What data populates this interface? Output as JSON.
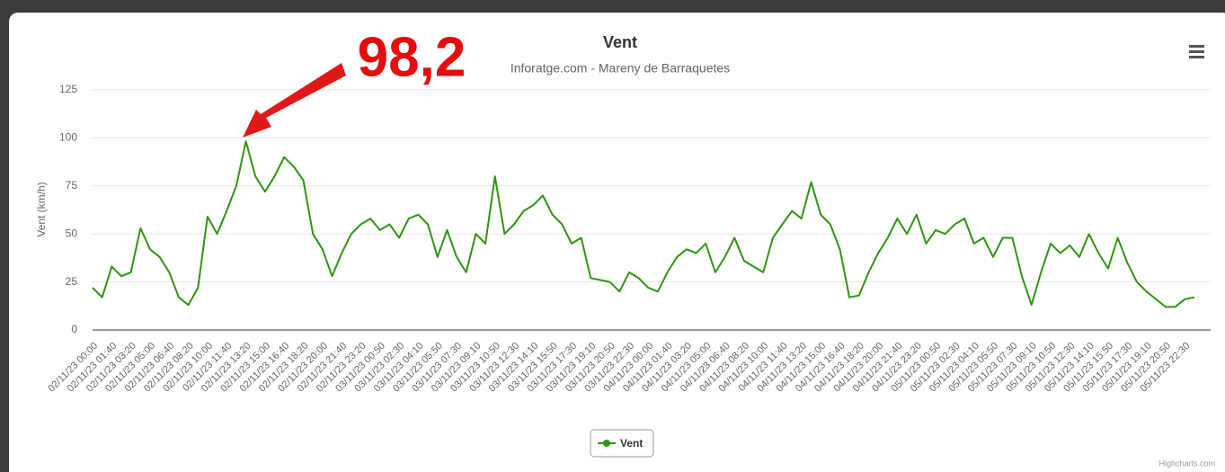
{
  "chart_data": {
    "type": "line",
    "title": "Vent",
    "subtitle": "Inforatge.com - Mareny de Barraquetes",
    "y_label": "Vent (km/h)",
    "annotation": "98,2",
    "credits": "Highcharts.com",
    "categories": [
      "02/11/23 00:00",
      null,
      "02/11/23 01:40",
      null,
      "02/11/23 03:20",
      null,
      "02/11/23 05:00",
      null,
      "02/11/23 06:40",
      null,
      "02/11/23 08:20",
      null,
      "02/11/23 10:00",
      null,
      "02/11/23 11:40",
      null,
      "02/11/23 13:20",
      null,
      "02/11/23 15:00",
      null,
      "02/11/23 16:40",
      null,
      "02/11/23 18:20",
      null,
      "02/11/23 20:00",
      null,
      "02/11/23 21:40",
      null,
      "02/11/23 23:20",
      null,
      "03/11/23 00:50",
      null,
      "03/11/23 02:30",
      null,
      "03/11/23 04:10",
      null,
      "03/11/23 05:50",
      null,
      "03/11/23 07:30",
      null,
      "03/11/23 09:10",
      null,
      "03/11/23 10:50",
      null,
      "03/11/23 12:30",
      null,
      "03/11/23 14:10",
      null,
      "03/11/23 15:50",
      null,
      "03/11/23 17:30",
      null,
      "03/11/23 19:10",
      null,
      "03/11/23 20:50",
      null,
      "03/11/23 22:30",
      null,
      "04/11/23 00:00",
      null,
      "04/11/23 01:40",
      null,
      "04/11/23 03:20",
      null,
      "04/11/23 05:00",
      null,
      "04/11/23 06:40",
      null,
      "04/11/23 08:20",
      null,
      "04/11/23 10:00",
      null,
      "04/11/23 11:40",
      null,
      "04/11/23 13:20",
      null,
      "04/11/23 15:00",
      null,
      "04/11/23 16:40",
      null,
      "04/11/23 18:20",
      null,
      "04/11/23 20:00",
      null,
      "04/11/23 21:40",
      null,
      "04/11/23 23:20",
      null,
      "05/11/23 00:50",
      null,
      "05/11/23 02:30",
      null,
      "05/11/23 04:10",
      null,
      "05/11/23 05:50",
      null,
      "05/11/23 07:30",
      null,
      "05/11/23 09:10",
      null,
      "05/11/23 10:50",
      null,
      "05/11/23 12:30",
      null,
      "05/11/23 14:10",
      null,
      "05/11/23 15:50",
      null,
      "05/11/23 17:30",
      null,
      "05/11/23 19:10",
      null,
      "05/11/23 20:50",
      null,
      "05/11/23 22:30",
      null
    ],
    "series": [
      {
        "name": "Vent",
        "color": "#2f9410",
        "values": [
          22,
          17,
          33,
          28,
          30,
          53,
          42,
          38,
          30,
          17,
          13,
          22,
          59,
          50,
          62,
          75,
          98.2,
          80,
          72,
          80,
          90,
          85,
          78,
          50,
          42,
          28,
          40,
          50,
          55,
          58,
          52,
          55,
          48,
          58,
          60,
          55,
          38,
          52,
          38,
          30,
          50,
          45,
          80,
          50,
          55,
          62,
          65,
          70,
          60,
          55,
          45,
          48,
          27,
          26,
          25,
          20,
          30,
          27,
          22,
          20,
          30,
          38,
          42,
          40,
          45,
          30,
          38,
          48,
          36,
          33,
          30,
          48,
          55,
          62,
          58,
          77,
          60,
          55,
          42,
          17,
          18,
          30,
          40,
          48,
          58,
          50,
          60,
          45,
          52,
          50,
          55,
          58,
          45,
          48,
          38,
          48,
          48,
          28,
          13,
          30,
          45,
          40,
          44,
          38,
          50,
          40,
          32,
          48,
          35,
          25,
          20,
          16,
          12,
          12,
          16,
          17
        ]
      }
    ],
    "ylim": [
      0,
      125
    ],
    "yticks": [
      0,
      25,
      50,
      75,
      100,
      125
    ],
    "grid": true,
    "legend": "bottom"
  }
}
